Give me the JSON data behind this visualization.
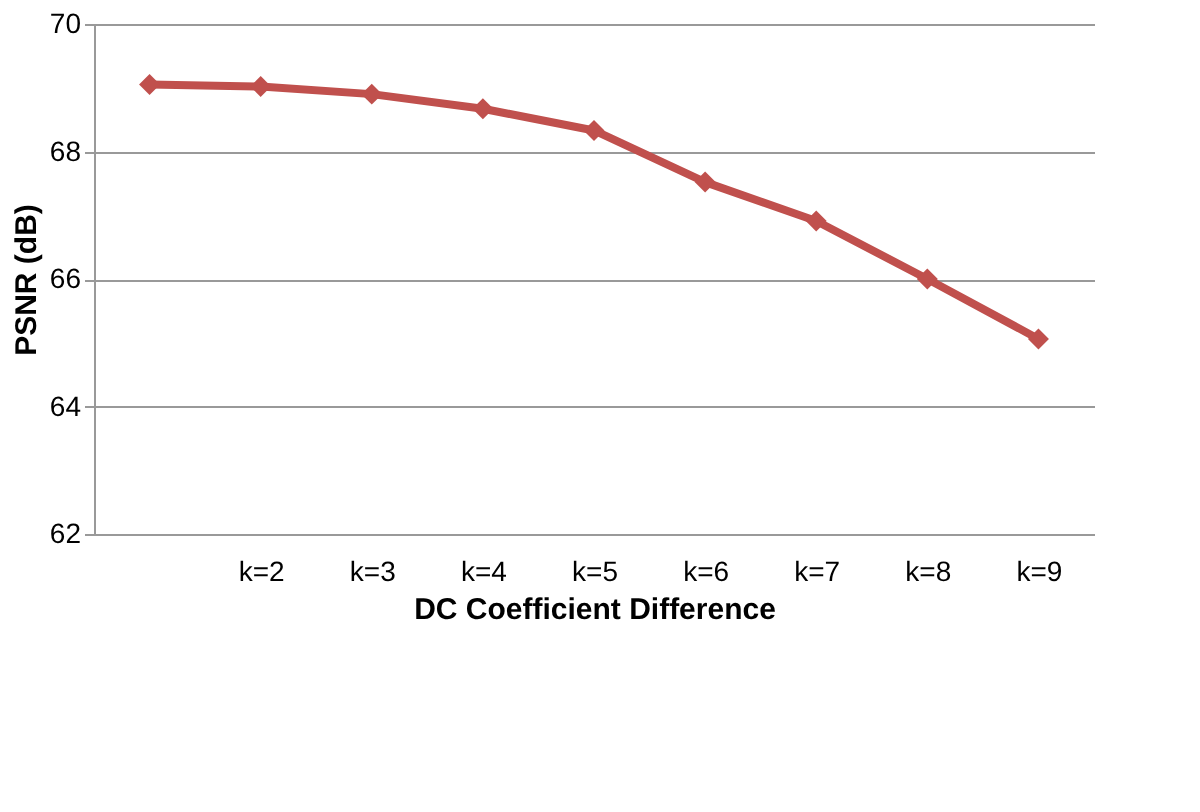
{
  "chart_data": {
    "type": "line",
    "xlabel": "DC Coefficient Difference",
    "ylabel": "PSNR (dB)",
    "categories": [
      null,
      "k=2",
      "k=3",
      "k=4",
      "k=5",
      "k=6",
      "k=7",
      "k=8",
      "k=9"
    ],
    "series": [
      {
        "color": "#c0504d",
        "values": [
          69.05,
          69.02,
          68.9,
          68.67,
          68.33,
          67.52,
          66.91,
          66.0,
          65.06
        ]
      }
    ],
    "ylim": [
      62,
      70
    ],
    "yticks": [
      62,
      64,
      66,
      68,
      70
    ],
    "grid": "y",
    "marker": "diamond",
    "line_style": "solid"
  }
}
